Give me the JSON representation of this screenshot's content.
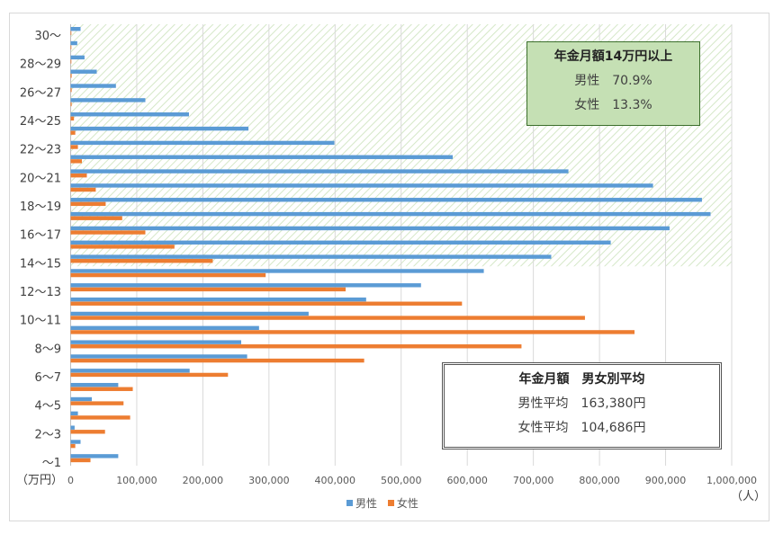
{
  "chart_data": {
    "type": "bar",
    "orientation": "horizontal",
    "categories": [
      "～1",
      "",
      "2～3",
      "",
      "4～5",
      "",
      "6～7",
      "",
      "8～9",
      "",
      "10～11",
      "",
      "12～13",
      "",
      "14～15",
      "",
      "16～17",
      "",
      "18～19",
      "",
      "20～21",
      "",
      "22～23",
      "",
      "24～25",
      "",
      "26～27",
      "",
      "28～29",
      "",
      "30～"
    ],
    "series": [
      {
        "name": "男性",
        "color": "#5b9bd5",
        "values": [
          72000,
          15000,
          6000,
          11000,
          32000,
          72000,
          180000,
          267000,
          258000,
          285000,
          360000,
          447000,
          530000,
          625000,
          727000,
          817000,
          906000,
          968000,
          955000,
          881000,
          753000,
          578000,
          399000,
          269000,
          179000,
          113000,
          68500,
          39500,
          21000,
          10000,
          15000
        ]
      },
      {
        "name": "女性",
        "color": "#ed7d31",
        "values": [
          30000,
          7000,
          52000,
          90000,
          80000,
          94000,
          238000,
          444000,
          682000,
          853000,
          778000,
          592000,
          416000,
          295000,
          215000,
          157000,
          113000,
          78000,
          53000,
          38000,
          24500,
          17000,
          11000,
          7000,
          5000,
          1500,
          1500,
          1500,
          1000,
          1000,
          1000
        ]
      }
    ],
    "xlim": [
      0,
      1000000
    ],
    "x_ticks": [
      "0",
      "100,000",
      "200,000",
      "300,000",
      "400,000",
      "500,000",
      "600,000",
      "700,000",
      "800,000",
      "900,000",
      "1,000,000"
    ],
    "xlabel": "（人）",
    "ylabel": "（万円）",
    "grid": "vertical",
    "legend": "bottom",
    "highlight_region": {
      "from_category": "14～15",
      "to_category": "30～",
      "fill": "hatched-green"
    }
  },
  "annotation1": {
    "title": "年金月額14万円以上",
    "rows": [
      {
        "label": "男性",
        "value": "70.9%"
      },
      {
        "label": "女性",
        "value": "13.3%"
      }
    ]
  },
  "annotation2": {
    "title": "年金月額　男女別平均",
    "rows": [
      {
        "label": "男性平均",
        "value": "163,380円"
      },
      {
        "label": "女性平均",
        "value": "104,686円"
      }
    ]
  }
}
